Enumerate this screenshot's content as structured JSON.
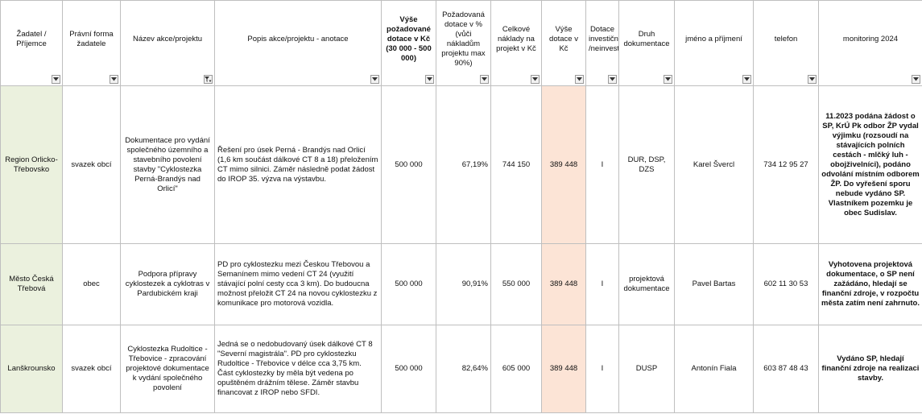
{
  "colors": {
    "applicant_fill": "#ebf1de",
    "grant_fill": "#fce4d6",
    "grid": "#bfbfbf"
  },
  "headers": [
    "Žadatel / Příjemce",
    "Právní forma žadatele",
    "Název akce/projektu",
    "Popis akce/projektu - anotace",
    "Výše požadované dotace v Kč (30 000 - 500 000)",
    "Požadovaná dotace v % (vůči nákladům projektu max 90%)",
    "Celkové náklady na projekt v Kč",
    "Výše dotace v Kč",
    "Dotace investiční /neinvestiční",
    "Druh dokumentace",
    "jméno a příjmení",
    "telefon",
    "monitoring 2024"
  ],
  "rows": [
    {
      "applicant": "Region Orlicko-Třebovsko",
      "legal_form": "svazek obcí",
      "project_name": "Dokumentace pro vydání společného územního a stavebního povolení stavby \"Cyklostezka Perná-Brandýs nad Orlicí\"",
      "description": "Řešení pro úsek Perná - Brandýs nad Orlicí (1,6 km součást dálkové CT 8 a 18) přeložením CT mimo silnici. Záměr následně podat žádost do IROP 35. výzva na výstavbu.",
      "requested": "500 000",
      "percent": "67,19%",
      "total_cost": "744 150",
      "grant": "389 448",
      "type": "I",
      "documentation": "DUR, DSP, DZS",
      "contact_name": "Karel Švercl",
      "phone": "734 12 95 27",
      "monitoring": "11.2023 podána žádost o SP, KrÚ Pk odbor ŽP vydal výjimku (rozsoudí na stávajících polních cestách - mlčký luh - obojživelníci), podáno odvolání místním odborem ŽP. Do vyřešení sporu nebude vydáno SP. Vlastníkem pozemku je obec Sudislav."
    },
    {
      "applicant": "Město Česká Třebová",
      "legal_form": "obec",
      "project_name": "Podpora přípravy cyklostezek a cyklotras v Pardubickém kraji",
      "description": "PD pro cyklostezku mezi Českou Třebovou a Semanínem mimo vedení CT 24 (využití stávající polní cesty cca 3 km). Do budoucna možnost přeložit CT 24 na novou cyklostezku z komunikace pro motorová vozidla.",
      "requested": "500 000",
      "percent": "90,91%",
      "total_cost": "550 000",
      "grant": "389 448",
      "type": "I",
      "documentation": "projektová dokumentace",
      "contact_name": "Pavel Bartas",
      "phone": "602 11 30 53",
      "monitoring": "Vyhotovena projektová dokumentace, o SP není zažádáno, hledají se finanční zdroje, v rozpočtu města zatím není zahrnuto."
    },
    {
      "applicant": "Lanškrounsko",
      "legal_form": "svazek obcí",
      "project_name": "Cyklostezka Rudoltice - Třebovice - zpracování projektové dokumentace k vydání společného povolení",
      "description": "Jedná se o nedobudovaný úsek dálkové CT 8 \"Severní magistrála\". PD pro cyklostezku Rudoltice - Třebovice v délce cca 3,75 km. Část cyklostezky by měla být vedena po opuštěném drážním tělese. Záměr stavbu financovat z IROP nebo SFDI.",
      "requested": "500 000",
      "percent": "82,64%",
      "total_cost": "605 000",
      "grant": "389 448",
      "type": "I",
      "documentation": "DUSP",
      "contact_name": "Antonín Fiala",
      "phone": "603 87 48 43",
      "monitoring": "Vydáno SP, hledají finanční zdroje na realizaci stavby."
    }
  ]
}
